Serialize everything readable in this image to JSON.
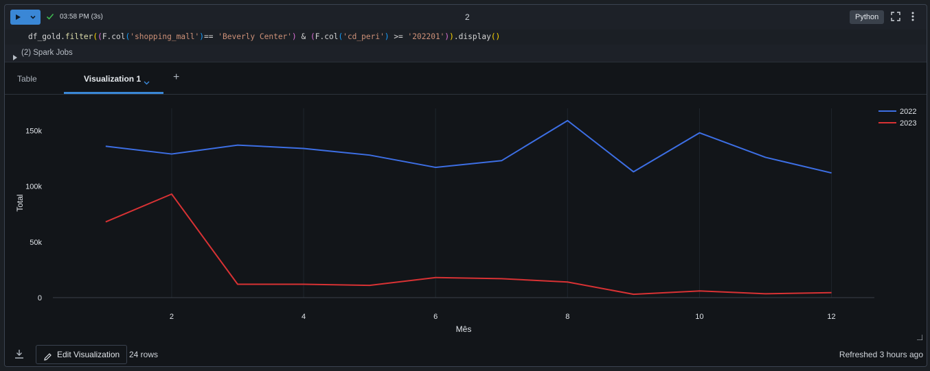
{
  "toolbar": {
    "run_time": "03:58 PM (3s)",
    "cell_number": "2",
    "language": "Python"
  },
  "code": {
    "t1": "df_gold.",
    "t2": "filter",
    "t3": "(",
    "t4": "(",
    "t5": "F.col",
    "t6": "(",
    "t7": "'shopping_mall'",
    "t8": ")",
    "t9": "== ",
    "t10": "'Beverly Center'",
    "t11": ")",
    "t12": " & ",
    "t13": "(",
    "t14": "F.col",
    "t15": "(",
    "t16": "'cd_peri'",
    "t17": ")",
    "t18": " >= ",
    "t19": "'202201'",
    "t20": ")",
    "t21": ")",
    "t22": ".display",
    "t23": "()"
  },
  "spark_jobs": "(2) Spark Jobs",
  "tabs": {
    "table": "Table",
    "visualization": "Visualization 1",
    "add": "+"
  },
  "chart_data": {
    "type": "line",
    "xlabel": "Mês",
    "ylabel": "Total",
    "x": [
      1,
      2,
      3,
      4,
      5,
      6,
      7,
      8,
      9,
      10,
      11,
      12
    ],
    "xticks": [
      2,
      4,
      6,
      8,
      10,
      12
    ],
    "xlim": [
      0.2,
      12.65
    ],
    "yticks": [
      0,
      50000,
      100000,
      150000
    ],
    "ytick_labels": [
      "0",
      "50k",
      "100k",
      "150k"
    ],
    "ylim": [
      0,
      170000
    ],
    "grid": false,
    "legend_position": "top-right",
    "series": [
      {
        "name": "2022",
        "color": "#3d6fe5",
        "values": [
          136000,
          129000,
          137000,
          134000,
          128000,
          117000,
          123000,
          159000,
          113000,
          148000,
          126000,
          112000
        ]
      },
      {
        "name": "2023",
        "color": "#d93234",
        "values": [
          68000,
          93000,
          12000,
          12000,
          11000,
          18000,
          17000,
          14000,
          3000,
          6000,
          3500,
          4500
        ]
      }
    ]
  },
  "footer": {
    "edit_label": "Edit Visualization",
    "rows": "24 rows",
    "refreshed": "Refreshed 3 hours ago"
  },
  "colors": {
    "accent": "#3a87d6",
    "success": "#3fb950"
  }
}
